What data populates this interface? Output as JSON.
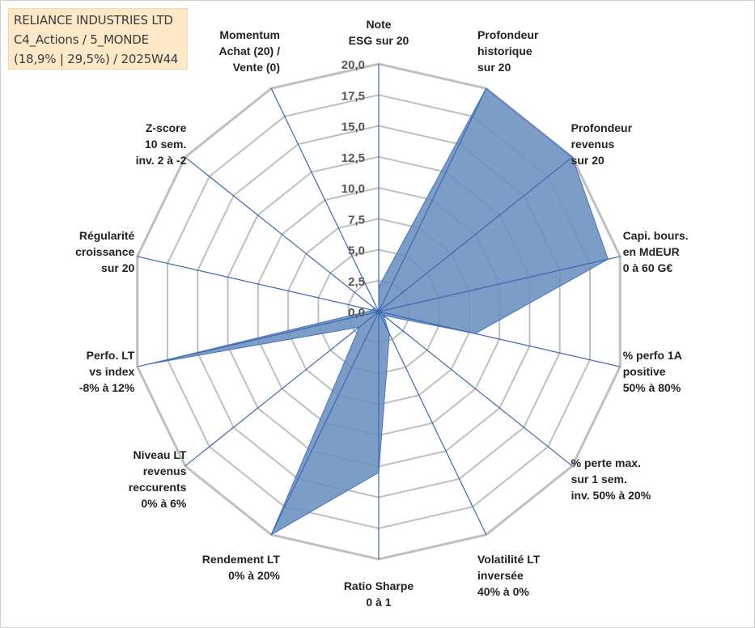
{
  "info_box": {
    "company": "RELIANCE INDUSTRIES LTD",
    "category": "C4_Actions / 5_MONDE",
    "stats": "(18,9% | 29,5%) / 2025W44"
  },
  "chart_data": {
    "type": "radar",
    "title": "",
    "axes": [
      "Note\nESG sur 20",
      "Profondeur\nhistorique\nsur 20",
      "Profondeur\nrevenus\nsur 20",
      "Capi. bours.\nen MdEUR\n0 à 60 G€",
      "% perfo 1A\npositive\n50% à 80%",
      "% perte max.\nsur 1 sem.\ninv. 50% à 20%",
      "Volatilité LT\ninversée\n40% à 0%",
      "Ratio Sharpe\n0 à 1",
      "Rendement LT\n0% à 20%",
      "Niveau LT\nrevenus\nreccurents\n0% à 6%",
      "Perfo. LT\nvs index\n-8% à 12%",
      "Régularité\ncroissance\nsur 20",
      "Z-score\n10 sem.\ninv. 2 à -2",
      "Momentum\nAchat (20) /\nVente (0)"
    ],
    "ticks": [
      "0,0",
      "2,5",
      "5,0",
      "7,5",
      "10,0",
      "12,5",
      "15,0",
      "17,5",
      "20,0"
    ],
    "range": [
      0,
      20
    ],
    "series": [
      {
        "name": "RELIANCE INDUSTRIES LTD",
        "values": [
          2.0,
          20.0,
          20.0,
          19.0,
          8.0,
          0.5,
          2.0,
          13.0,
          20.0,
          2.0,
          19.0,
          0.5,
          0.5,
          0.0
        ],
        "color": "#6a8fbd"
      }
    ],
    "colors": {
      "grid": "#bfbfbf",
      "axis": "#3c67b3",
      "fill": "#6a8fbd",
      "stroke": "#4472c4"
    }
  }
}
